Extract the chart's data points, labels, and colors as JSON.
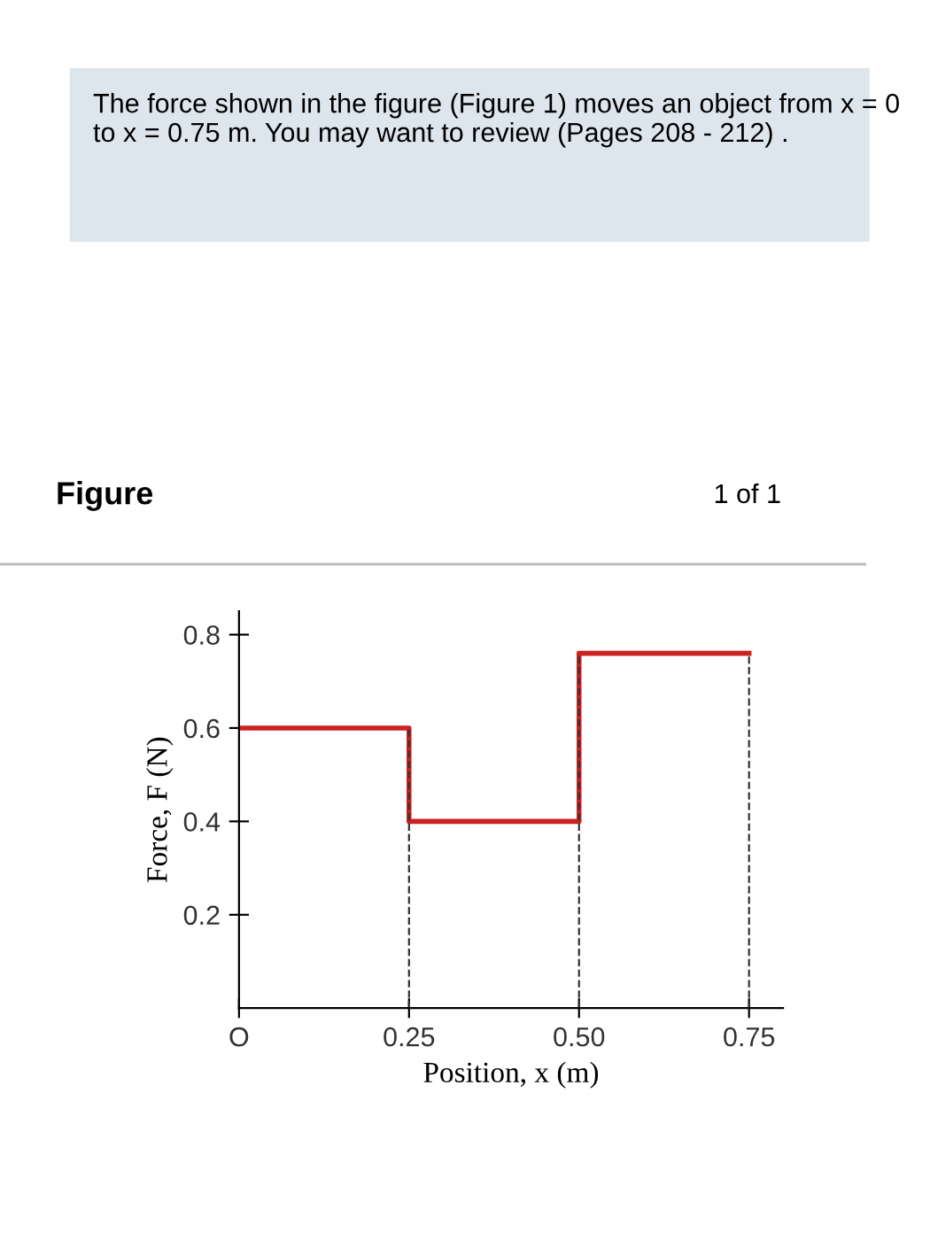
{
  "chart_data": {
    "type": "step",
    "title": "The force shown in the figure (Figure 1) moves an object from x = 0 to x = 0.75 m. You may want to review (Pages 208 - 212) .",
    "subtitle": "Figure",
    "annotations": [
      "1 of 1"
    ],
    "xlabel": "Position, x (m)",
    "ylabel": "Force, F (N)",
    "x": [
      0,
      0.25,
      0.5,
      0.75
    ],
    "series": [
      {
        "color": "#cc2222",
        "values": [
          0.6,
          0.4,
          0.76,
          0.76
        ]
      }
    ],
    "xlim": [
      0,
      0.8
    ],
    "ylim": [
      0,
      0.85
    ],
    "xticks": [
      {
        "value": 0,
        "label": "O"
      },
      0.25,
      {
        "value": 0.5,
        "label": "0.50"
      },
      0.75
    ],
    "yticks": [
      0.2,
      0.4,
      0.6,
      0.8
    ],
    "grid": "x",
    "legend": false
  }
}
